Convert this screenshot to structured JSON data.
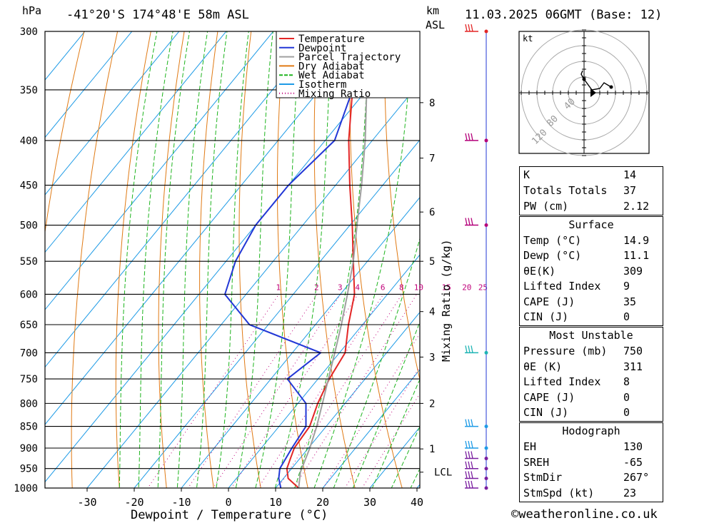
{
  "header": {
    "hpa_label": "hPa",
    "location": "-41°20'S 174°48'E 58m ASL",
    "km_label": "km",
    "asl_label": "ASL",
    "datetime": "11.03.2025 06GMT (Base: 12)"
  },
  "chart_data": {
    "type": "skew-t log-p",
    "xlabel": "Dewpoint / Temperature (°C)",
    "ylabel": "hPa",
    "secondary_ylabel": "Mixing Ratio (g/kg)",
    "xlim": [
      -40,
      40
    ],
    "ylim": [
      1000,
      300
    ],
    "x_ticks": [
      -30,
      -20,
      -10,
      0,
      10,
      20,
      30,
      40
    ],
    "pressure_levels": [
      300,
      350,
      400,
      450,
      500,
      550,
      600,
      650,
      700,
      750,
      800,
      850,
      900,
      950,
      1000
    ],
    "km_ticks": [
      {
        "label": "8",
        "p": 362
      },
      {
        "label": "7",
        "p": 419
      },
      {
        "label": "6",
        "p": 483
      },
      {
        "label": "5",
        "p": 550
      },
      {
        "label": "4",
        "p": 628
      },
      {
        "label": "3",
        "p": 708
      },
      {
        "label": "2",
        "p": 800
      },
      {
        "label": "1",
        "p": 902
      },
      {
        "label": "LCL",
        "p": 959
      }
    ],
    "mixing_ratio_labels": [
      "1",
      "2",
      "3",
      "4",
      "6",
      "8",
      "10",
      "15",
      "20",
      "25"
    ],
    "legend": {
      "placement": "top-right",
      "entries": [
        {
          "name": "Temperature",
          "color": "#e32626"
        },
        {
          "name": "Dewpoint",
          "color": "#2237d6"
        },
        {
          "name": "Parcel Trajectory",
          "color": "#a0a0a0"
        },
        {
          "name": "Dry Adiabat",
          "color": "#e07a14"
        },
        {
          "name": "Wet Adiabat",
          "color": "#1eb41e"
        },
        {
          "name": "Isotherm",
          "color": "#1e9be6"
        },
        {
          "name": "Mixing Ratio",
          "color": "#c0007a"
        }
      ]
    },
    "series": [
      {
        "name": "Temperature",
        "color": "#e32626",
        "points": [
          [
            1000,
            14.9
          ],
          [
            975,
            11
          ],
          [
            950,
            9
          ],
          [
            925,
            8
          ],
          [
            900,
            7
          ],
          [
            850,
            6.5
          ],
          [
            800,
            4.2
          ],
          [
            750,
            2.4
          ],
          [
            700,
            1.2
          ],
          [
            650,
            -3
          ],
          [
            600,
            -7
          ],
          [
            550,
            -13
          ],
          [
            500,
            -19.5
          ],
          [
            450,
            -27
          ],
          [
            400,
            -35
          ],
          [
            350,
            -43
          ],
          [
            300,
            -53
          ]
        ]
      },
      {
        "name": "Dewpoint",
        "color": "#2237d6",
        "points": [
          [
            1000,
            11.1
          ],
          [
            975,
            9
          ],
          [
            950,
            7.5
          ],
          [
            900,
            6.5
          ],
          [
            850,
            5.7
          ],
          [
            800,
            1.7
          ],
          [
            750,
            -6.5
          ],
          [
            700,
            -4
          ],
          [
            650,
            -24
          ],
          [
            600,
            -34.5
          ],
          [
            550,
            -38
          ],
          [
            500,
            -40
          ],
          [
            450,
            -40
          ],
          [
            400,
            -38
          ],
          [
            350,
            -43
          ],
          [
            300,
            -53.5
          ]
        ]
      },
      {
        "name": "Parcel Trajectory",
        "color": "#a0a0a0",
        "points": [
          [
            1000,
            14.9
          ],
          [
            959,
            12.5
          ],
          [
            900,
            10.3
          ],
          [
            850,
            8
          ],
          [
            800,
            5.2
          ],
          [
            750,
            2.2
          ],
          [
            700,
            -1
          ],
          [
            650,
            -4.5
          ],
          [
            600,
            -8.5
          ],
          [
            550,
            -13
          ],
          [
            500,
            -18.5
          ],
          [
            450,
            -24.5
          ],
          [
            400,
            -31.5
          ],
          [
            350,
            -40
          ],
          [
            300,
            -50
          ]
        ]
      }
    ],
    "wind_barbs": [
      {
        "p": 1000
      },
      {
        "p": 975
      },
      {
        "p": 950
      },
      {
        "p": 925
      },
      {
        "p": 900
      },
      {
        "p": 850
      },
      {
        "p": 700
      },
      {
        "p": 500
      },
      {
        "p": 400
      },
      {
        "p": 300
      }
    ]
  },
  "hodograph": {
    "unit_label": "kt",
    "ring_labels": [
      "40",
      "80",
      "120"
    ]
  },
  "indices": {
    "general": [
      {
        "label": "K",
        "value": "14"
      },
      {
        "label": "Totals Totals",
        "value": "37"
      },
      {
        "label": "PW (cm)",
        "value": "2.12"
      }
    ],
    "surface": {
      "title": "Surface",
      "rows": [
        {
          "label": "Temp (°C)",
          "value": "14.9"
        },
        {
          "label": "Dewp (°C)",
          "value": "11.1"
        },
        {
          "label": "θE(K)",
          "value": "309"
        },
        {
          "label": "Lifted Index",
          "value": "9"
        },
        {
          "label": "CAPE (J)",
          "value": "35"
        },
        {
          "label": "CIN (J)",
          "value": "0"
        }
      ]
    },
    "most_unstable": {
      "title": "Most Unstable",
      "rows": [
        {
          "label": "Pressure (mb)",
          "value": "750"
        },
        {
          "label": "θE (K)",
          "value": "311"
        },
        {
          "label": "Lifted Index",
          "value": "8"
        },
        {
          "label": "CAPE (J)",
          "value": "0"
        },
        {
          "label": "CIN (J)",
          "value": "0"
        }
      ]
    },
    "hodograph_box": {
      "title": "Hodograph",
      "rows": [
        {
          "label": "EH",
          "value": "130"
        },
        {
          "label": "SREH",
          "value": "-65"
        },
        {
          "label": "StmDir",
          "value": "267°"
        },
        {
          "label": "StmSpd (kt)",
          "value": "23"
        }
      ]
    }
  },
  "footer": {
    "copyright": "©weatheronline.co.uk"
  }
}
